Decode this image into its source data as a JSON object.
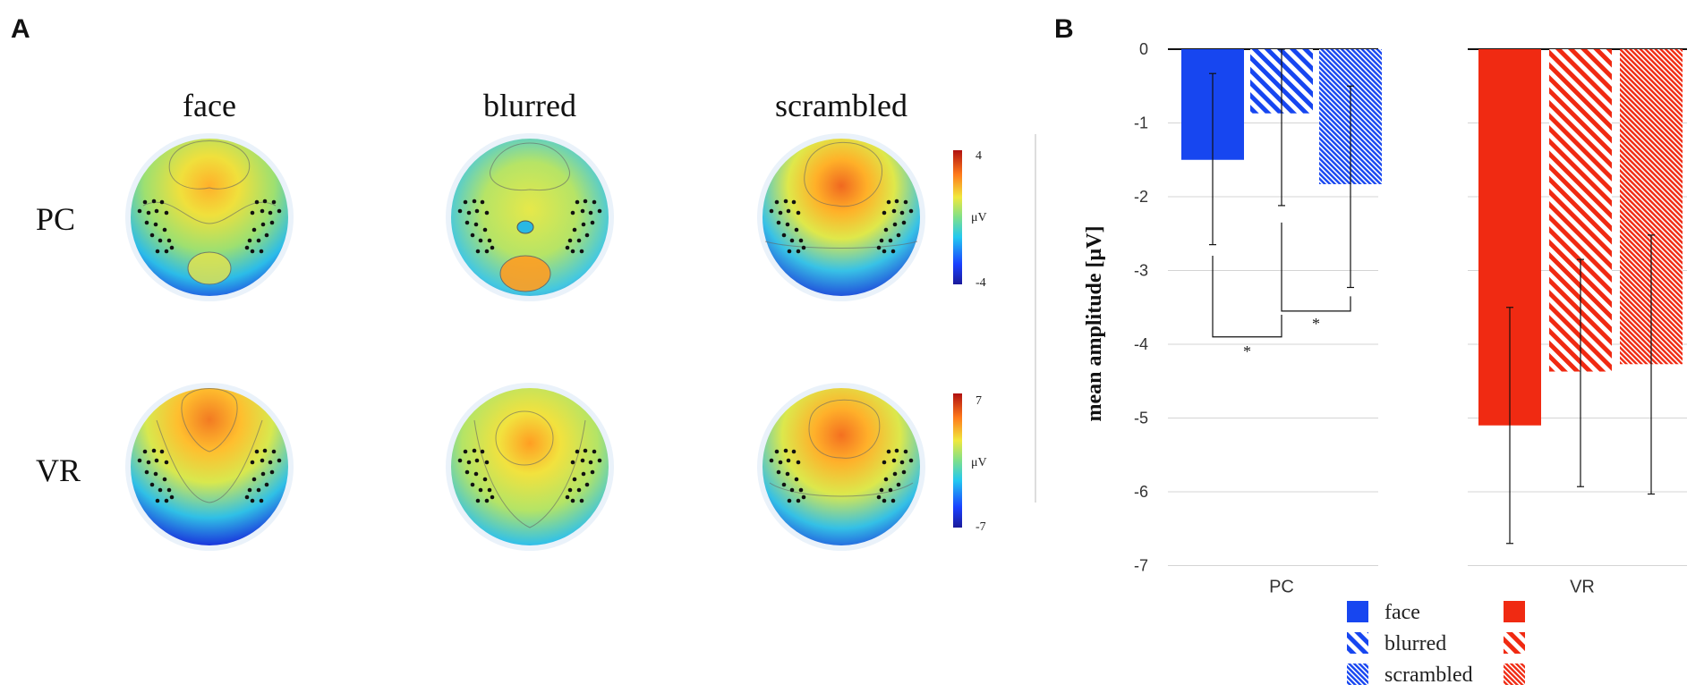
{
  "panels": {
    "A": "A",
    "B": "B"
  },
  "topomaps": {
    "columns": [
      "face",
      "blurred",
      "scrambled"
    ],
    "rows": [
      "PC",
      "VR"
    ],
    "colorbars": [
      {
        "max": "4",
        "unit": "μV",
        "min": "-4"
      },
      {
        "max": "7",
        "unit": "μV",
        "min": "-7"
      }
    ],
    "colors": {
      "hot": "#e8262a",
      "warm": "#ff9a1a",
      "mid": "#e4e844",
      "cool": "#33c3e8",
      "cold": "#1a35e0"
    }
  },
  "chart_data": {
    "type": "bar",
    "ylabel": "mean amplitude [μV]",
    "ylim": [
      -7,
      0
    ],
    "yticks": [
      "0",
      "-1",
      "-2",
      "-3",
      "-4",
      "-5",
      "-6",
      "-7"
    ],
    "yticks_values": [
      0,
      -1,
      -2,
      -3,
      -4,
      -5,
      -6,
      -7
    ],
    "groups": [
      "PC",
      "VR"
    ],
    "series": [
      {
        "name": "face",
        "pattern": "solid",
        "values": [
          -1.5,
          -5.1
        ],
        "err_low": [
          -2.65,
          -6.7
        ],
        "err_high": [
          -0.33,
          -3.5
        ]
      },
      {
        "name": "blurred",
        "pattern": "wide-hatch",
        "values": [
          -0.87,
          -4.37
        ],
        "err_low": [
          -2.12,
          -5.93
        ],
        "err_high": [
          0.0,
          -2.85
        ]
      },
      {
        "name": "scrambled",
        "pattern": "fine-hatch",
        "values": [
          -1.83,
          -4.27
        ],
        "err_low": [
          -3.23,
          -6.03
        ],
        "err_high": [
          -0.5,
          -2.52
        ]
      }
    ],
    "group_colors": {
      "PC": "#1746f0",
      "VR": "#f02a12"
    },
    "significance": [
      {
        "group": "PC",
        "from": "face",
        "to": "blurred",
        "label": "*"
      },
      {
        "group": "PC",
        "from": "blurred",
        "to": "scrambled",
        "label": "*"
      }
    ],
    "legend": [
      "face",
      "blurred",
      "scrambled"
    ],
    "legend_position": "bottom"
  }
}
